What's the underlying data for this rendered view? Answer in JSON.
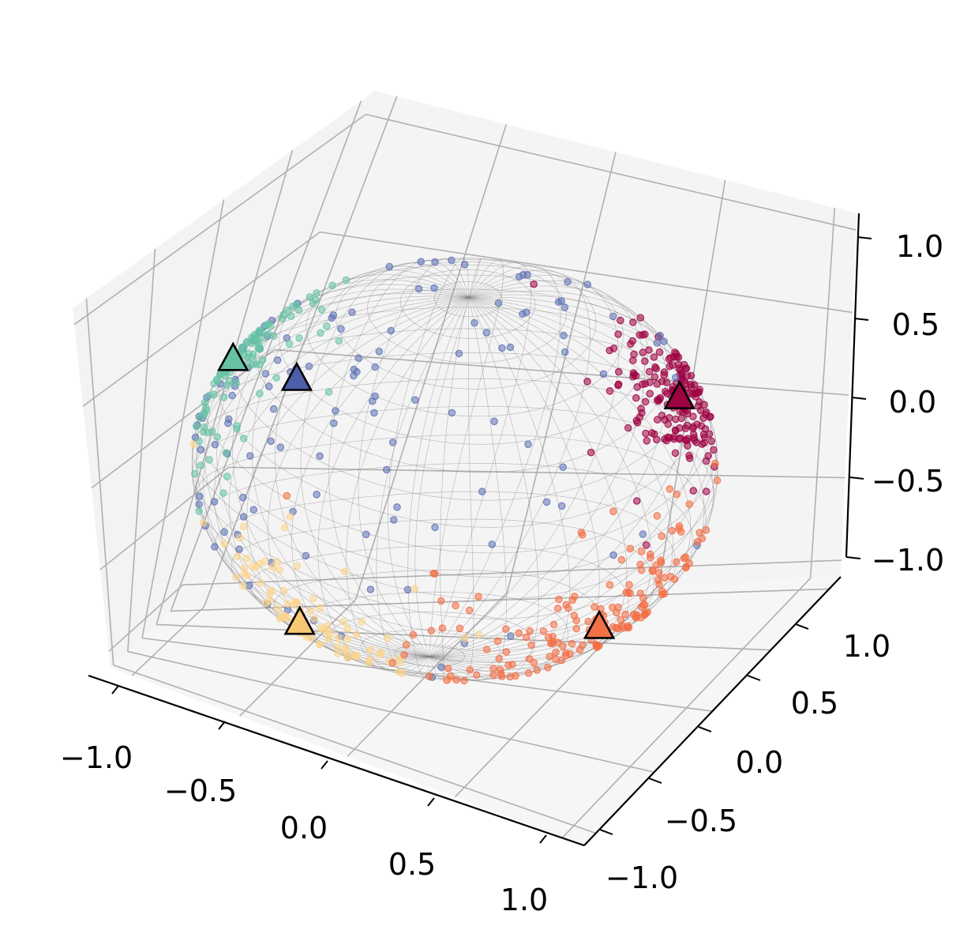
{
  "chart_data": {
    "type": "scatter",
    "projection": "3d",
    "title": "",
    "xlabel": "",
    "ylabel": "",
    "zlabel": "",
    "xlim": [
      -1.1,
      1.1
    ],
    "ylim": [
      -1.1,
      1.1
    ],
    "zlim": [
      -1.1,
      1.1
    ],
    "x_ticks": [
      "−1.0",
      "−0.5",
      "0.0",
      "0.5",
      "1.0"
    ],
    "y_ticks": [
      "−1.0",
      "−0.5",
      "0.0",
      "0.5",
      "1.0"
    ],
    "z_ticks": [
      "−1.0",
      "−0.5",
      "0.0",
      "0.5",
      "1.0"
    ],
    "x_tick_values": [
      -1.0,
      -0.5,
      0.0,
      0.5,
      1.0
    ],
    "y_tick_values": [
      -1.0,
      -0.5,
      0.0,
      0.5,
      1.0
    ],
    "z_tick_values": [
      -1.0,
      -0.5,
      0.0,
      0.5,
      1.0
    ],
    "grid": true,
    "sphere_wireframe": {
      "radius": 1.0,
      "color": "#808080"
    },
    "clusters": [
      {
        "color": "#9e0142",
        "center_marker_color": "#9e0142",
        "center": [
          0.55,
          0.8,
          0.1
        ]
      },
      {
        "color": "#5e72b5",
        "center_marker_color": "#4d5fa8",
        "center": [
          -0.55,
          0.35,
          0.05
        ]
      },
      {
        "color": "#66c2a5",
        "center_marker_color": "#66c2a5",
        "center": [
          -0.85,
          -0.2,
          0.45
        ]
      },
      {
        "color": "#fdd58a",
        "center_marker_color": "#f7c873",
        "center": [
          -0.3,
          -0.7,
          -0.55
        ]
      },
      {
        "color": "#f46d43",
        "center_marker_color": "#f07146",
        "center": [
          0.6,
          0.15,
          -0.8
        ]
      }
    ]
  }
}
